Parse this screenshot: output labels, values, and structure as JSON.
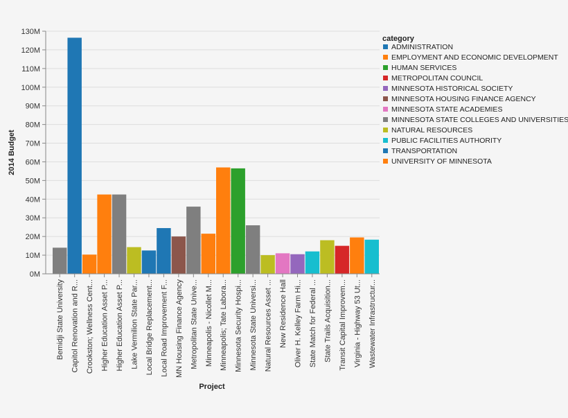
{
  "chart_data": {
    "type": "bar",
    "xlabel": "Project",
    "ylabel": "2014 Budget",
    "ylim": [
      0,
      130000000
    ],
    "yticks": [
      {
        "value": 0,
        "label": "0M"
      },
      {
        "value": 10000000,
        "label": "10M"
      },
      {
        "value": 20000000,
        "label": "20M"
      },
      {
        "value": 30000000,
        "label": "30M"
      },
      {
        "value": 40000000,
        "label": "40M"
      },
      {
        "value": 50000000,
        "label": "50M"
      },
      {
        "value": 60000000,
        "label": "60M"
      },
      {
        "value": 70000000,
        "label": "70M"
      },
      {
        "value": 80000000,
        "label": "80M"
      },
      {
        "value": 90000000,
        "label": "90M"
      },
      {
        "value": 100000000,
        "label": "100M"
      },
      {
        "value": 110000000,
        "label": "110M"
      },
      {
        "value": 120000000,
        "label": "120M"
      },
      {
        "value": 130000000,
        "label": "130M"
      }
    ],
    "grid": true,
    "legend": {
      "title": "category",
      "position": "top-right",
      "entries": [
        {
          "name": "ADMINISTRATION",
          "color": "#1f77b4"
        },
        {
          "name": "EMPLOYMENT AND ECONOMIC DEVELOPMENT",
          "color": "#ff7f0e"
        },
        {
          "name": "HUMAN SERVICES",
          "color": "#2ca02c"
        },
        {
          "name": "METROPOLITAN COUNCIL",
          "color": "#d62728"
        },
        {
          "name": "MINNESOTA HISTORICAL SOCIETY",
          "color": "#9467bd"
        },
        {
          "name": "MINNESOTA HOUSING FINANCE AGENCY",
          "color": "#8c564b"
        },
        {
          "name": "MINNESOTA STATE ACADEMIES",
          "color": "#e377c2"
        },
        {
          "name": "MINNESOTA STATE COLLEGES AND UNIVERSITIES",
          "color": "#7f7f7f"
        },
        {
          "name": "NATURAL RESOURCES",
          "color": "#bcbd22"
        },
        {
          "name": "PUBLIC FACILITIES AUTHORITY",
          "color": "#17becf"
        },
        {
          "name": "TRANSPORTATION",
          "color": "#1f77b4"
        },
        {
          "name": "UNIVERSITY OF MINNESOTA",
          "color": "#ff7f0e"
        }
      ]
    },
    "bars": [
      {
        "label": "Bemidji State University",
        "value": 14000000,
        "category": "MINNESOTA STATE COLLEGES AND UNIVERSITIES"
      },
      {
        "label": "Capitol Renovation and R...",
        "value": 126500000,
        "category": "ADMINISTRATION"
      },
      {
        "label": "Crookston; Wellness Cent...",
        "value": 10300000,
        "category": "UNIVERSITY OF MINNESOTA"
      },
      {
        "label": "Higher Education Asset P...",
        "value": 42500000,
        "category": "UNIVERSITY OF MINNESOTA"
      },
      {
        "label": "Higher Education Asset P...",
        "value": 42500000,
        "category": "MINNESOTA STATE COLLEGES AND UNIVERSITIES"
      },
      {
        "label": "Lake Vermilion State Par...",
        "value": 14300000,
        "category": "NATURAL RESOURCES"
      },
      {
        "label": "Local Bridge Replacement...",
        "value": 12500000,
        "category": "TRANSPORTATION"
      },
      {
        "label": "Local Road Improvement F...",
        "value": 24500000,
        "category": "TRANSPORTATION"
      },
      {
        "label": "MN Housing Finance Agency",
        "value": 20000000,
        "category": "MINNESOTA HOUSING FINANCE AGENCY"
      },
      {
        "label": "Metropolitan State Unive...",
        "value": 36000000,
        "category": "MINNESOTA STATE COLLEGES AND UNIVERSITIES"
      },
      {
        "label": "Minneapolis - Nicollet M...",
        "value": 21500000,
        "category": "EMPLOYMENT AND ECONOMIC DEVELOPMENT"
      },
      {
        "label": "Minneapolis; Tate Labora...",
        "value": 57000000,
        "category": "UNIVERSITY OF MINNESOTA"
      },
      {
        "label": "Minnesota Security Hospi...",
        "value": 56500000,
        "category": "HUMAN SERVICES"
      },
      {
        "label": "Minnesota State Universi...",
        "value": 26000000,
        "category": "MINNESOTA STATE COLLEGES AND UNIVERSITIES"
      },
      {
        "label": "Natural Resources Asset ...",
        "value": 10000000,
        "category": "NATURAL RESOURCES"
      },
      {
        "label": "New Residence Hall",
        "value": 11000000,
        "category": "MINNESOTA STATE ACADEMIES"
      },
      {
        "label": "Oliver H. Kelley Farm Hi...",
        "value": 10500000,
        "category": "MINNESOTA HISTORICAL SOCIETY"
      },
      {
        "label": "State Match for Federal ...",
        "value": 12000000,
        "category": "PUBLIC FACILITIES AUTHORITY"
      },
      {
        "label": "State Trails Acquisition...",
        "value": 18000000,
        "category": "NATURAL RESOURCES"
      },
      {
        "label": "Transit Capital Improvem...",
        "value": 15000000,
        "category": "METROPOLITAN COUNCIL"
      },
      {
        "label": "Virginia - Highway 53 Ut...",
        "value": 19500000,
        "category": "EMPLOYMENT AND ECONOMIC DEVELOPMENT"
      },
      {
        "label": "Wastewater Infrastructur...",
        "value": 18300000,
        "category": "PUBLIC FACILITIES AUTHORITY"
      }
    ]
  }
}
